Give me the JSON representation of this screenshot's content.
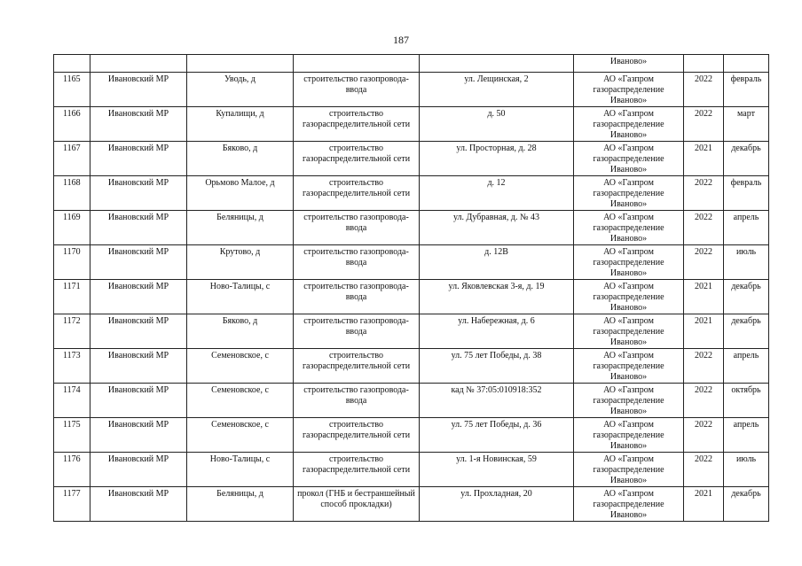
{
  "page_number": "187",
  "continuation": {
    "org": "Иваново»"
  },
  "rows": [
    {
      "n": "1165",
      "district": "Ивановский МР",
      "locality": "Уводь, д",
      "work": "строительство газопровода-ввода",
      "address": "ул. Лещинская, 2",
      "org": "АО «Газпром газораспределение Иваново»",
      "year": "2022",
      "month": "февраль"
    },
    {
      "n": "1166",
      "district": "Ивановский МР",
      "locality": "Купалищи, д",
      "work": "строительство газораспределительной сети",
      "address": "д. 50",
      "org": "АО «Газпром газораспределение Иваново»",
      "year": "2022",
      "month": "март"
    },
    {
      "n": "1167",
      "district": "Ивановский МР",
      "locality": "Бяково, д",
      "work": "строительство газораспределительной сети",
      "address": "ул. Просторная, д. 28",
      "org": "АО «Газпром газораспределение Иваново»",
      "year": "2021",
      "month": "декабрь"
    },
    {
      "n": "1168",
      "district": "Ивановский МР",
      "locality": "Орьмово Малое, д",
      "work": "строительство газораспределительной сети",
      "address": "д. 12",
      "org": "АО «Газпром газораспределение Иваново»",
      "year": "2022",
      "month": "февраль"
    },
    {
      "n": "1169",
      "district": "Ивановский МР",
      "locality": "Беляницы, д",
      "work": "строительство газопровода-ввода",
      "address": "ул. Дубравная, д. № 43",
      "org": "АО «Газпром газораспределение Иваново»",
      "year": "2022",
      "month": "апрель"
    },
    {
      "n": "1170",
      "district": "Ивановский МР",
      "locality": "Крутово, д",
      "work": "строительство газопровода-ввода",
      "address": "д. 12В",
      "org": "АО «Газпром газораспределение Иваново»",
      "year": "2022",
      "month": "июль"
    },
    {
      "n": "1171",
      "district": "Ивановский МР",
      "locality": "Ново-Талицы, с",
      "work": "строительство газопровода-ввода",
      "address": "ул. Яковлевская 3-я, д. 19",
      "org": "АО «Газпром газораспределение Иваново»",
      "year": "2021",
      "month": "декабрь"
    },
    {
      "n": "1172",
      "district": "Ивановский МР",
      "locality": "Бяково, д",
      "work": "строительство газопровода-ввода",
      "address": "ул. Набережная, д. 6",
      "org": "АО «Газпром газораспределение Иваново»",
      "year": "2021",
      "month": "декабрь"
    },
    {
      "n": "1173",
      "district": "Ивановский МР",
      "locality": "Семеновское, с",
      "work": "строительство газораспределительной сети",
      "address": "ул. 75 лет Победы, д. 38",
      "org": "АО «Газпром газораспределение Иваново»",
      "year": "2022",
      "month": "апрель"
    },
    {
      "n": "1174",
      "district": "Ивановский МР",
      "locality": "Семеновское, с",
      "work": "строительство газопровода-ввода",
      "address": "кад № 37:05:010918:352",
      "org": "АО «Газпром газораспределение Иваново»",
      "year": "2022",
      "month": "октябрь"
    },
    {
      "n": "1175",
      "district": "Ивановский МР",
      "locality": "Семеновское, с",
      "work": "строительство газораспределительной сети",
      "address": "ул. 75 лет Победы, д. 36",
      "org": "АО «Газпром газораспределение Иваново»",
      "year": "2022",
      "month": "апрель"
    },
    {
      "n": "1176",
      "district": "Ивановский МР",
      "locality": "Ново-Талицы, с",
      "work": "строительство газораспределительной сети",
      "address": "ул. 1-я Новинская, 59",
      "org": "АО «Газпром газораспределение Иваново»",
      "year": "2022",
      "month": "июль"
    },
    {
      "n": "1177",
      "district": "Ивановский МР",
      "locality": "Беляницы, д",
      "work": "прокол (ГНБ и бестраншейный способ прокладки)",
      "address": "ул. Прохладная, 20",
      "org": "АО «Газпром газораспределение Иваново»",
      "year": "2021",
      "month": "декабрь"
    }
  ]
}
